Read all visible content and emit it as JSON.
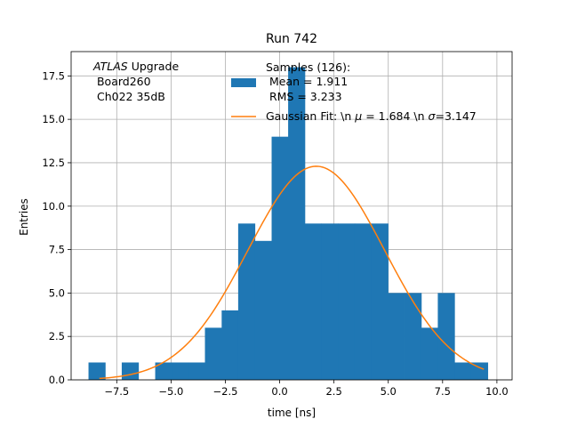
{
  "chart_data": {
    "type": "bar",
    "title": "Run 742",
    "xlabel": "time [ns]",
    "ylabel": "Entries",
    "xlim": [
      -9.6,
      10.7
    ],
    "ylim": [
      0,
      18.9
    ],
    "grid": true,
    "x_ticks": [
      -7.5,
      -5.0,
      -2.5,
      0.0,
      2.5,
      5.0,
      7.5,
      10.0
    ],
    "x_tick_labels": [
      "−7.5",
      "−5.0",
      "−2.5",
      "0.0",
      "2.5",
      "5.0",
      "7.5",
      "10.0"
    ],
    "y_ticks": [
      0.0,
      2.5,
      5.0,
      7.5,
      10.0,
      12.5,
      15.0,
      17.5
    ],
    "y_tick_labels": [
      "0.0",
      "2.5",
      "5.0",
      "7.5",
      "10.0",
      "12.5",
      "15.0",
      "17.5"
    ],
    "annotation": {
      "atlas": "ATLAS",
      "line1_rest": " Upgrade",
      "line2": " Board260",
      "line3": " Ch022 35dB"
    },
    "legend": {
      "placement": "top-right",
      "histogram_lines": [
        "Samples (126):",
        " Mean = 1.911",
        " RMS = 3.233"
      ],
      "fit_prefix": "Gaussian Fit: \\n ",
      "fit_mu": "μ",
      "fit_mid": " = 1.684 \\n ",
      "fit_sigma": "σ",
      "fit_suffix": "=3.147"
    },
    "histogram": {
      "name": "Samples (126):",
      "color": "#1f77b4",
      "bins": [
        {
          "x0": -8.8,
          "x1": -8.03,
          "value": 1
        },
        {
          "x0": -8.03,
          "x1": -7.27,
          "value": 0
        },
        {
          "x0": -7.27,
          "x1": -6.5,
          "value": 1
        },
        {
          "x0": -6.5,
          "x1": -5.73,
          "value": 0
        },
        {
          "x0": -5.73,
          "x1": -4.97,
          "value": 1
        },
        {
          "x0": -4.97,
          "x1": -4.2,
          "value": 1
        },
        {
          "x0": -4.2,
          "x1": -3.44,
          "value": 1
        },
        {
          "x0": -3.44,
          "x1": -2.67,
          "value": 3
        },
        {
          "x0": -2.67,
          "x1": -1.91,
          "value": 4
        },
        {
          "x0": -1.91,
          "x1": -1.14,
          "value": 9
        },
        {
          "x0": -1.14,
          "x1": -0.37,
          "value": 8
        },
        {
          "x0": -0.37,
          "x1": 0.39,
          "value": 14
        },
        {
          "x0": 0.39,
          "x1": 1.16,
          "value": 18
        },
        {
          "x0": 1.16,
          "x1": 1.92,
          "value": 9
        },
        {
          "x0": 1.92,
          "x1": 2.69,
          "value": 9
        },
        {
          "x0": 2.69,
          "x1": 3.45,
          "value": 9
        },
        {
          "x0": 3.45,
          "x1": 4.22,
          "value": 9
        },
        {
          "x0": 4.22,
          "x1": 4.99,
          "value": 9
        },
        {
          "x0": 4.99,
          "x1": 5.75,
          "value": 5
        },
        {
          "x0": 5.75,
          "x1": 6.52,
          "value": 5
        },
        {
          "x0": 6.52,
          "x1": 7.28,
          "value": 3
        },
        {
          "x0": 7.28,
          "x1": 8.05,
          "value": 5
        },
        {
          "x0": 8.05,
          "x1": 8.81,
          "value": 1
        },
        {
          "x0": 8.81,
          "x1": 9.58,
          "value": 1
        }
      ]
    },
    "fit": {
      "name": "Gaussian Fit",
      "color": "#ff7f0e",
      "mu": 1.684,
      "sigma": 3.147,
      "amplitude": 12.3,
      "x_range": [
        -8.3,
        9.4
      ]
    },
    "grid_color": "#b0b0b0"
  }
}
